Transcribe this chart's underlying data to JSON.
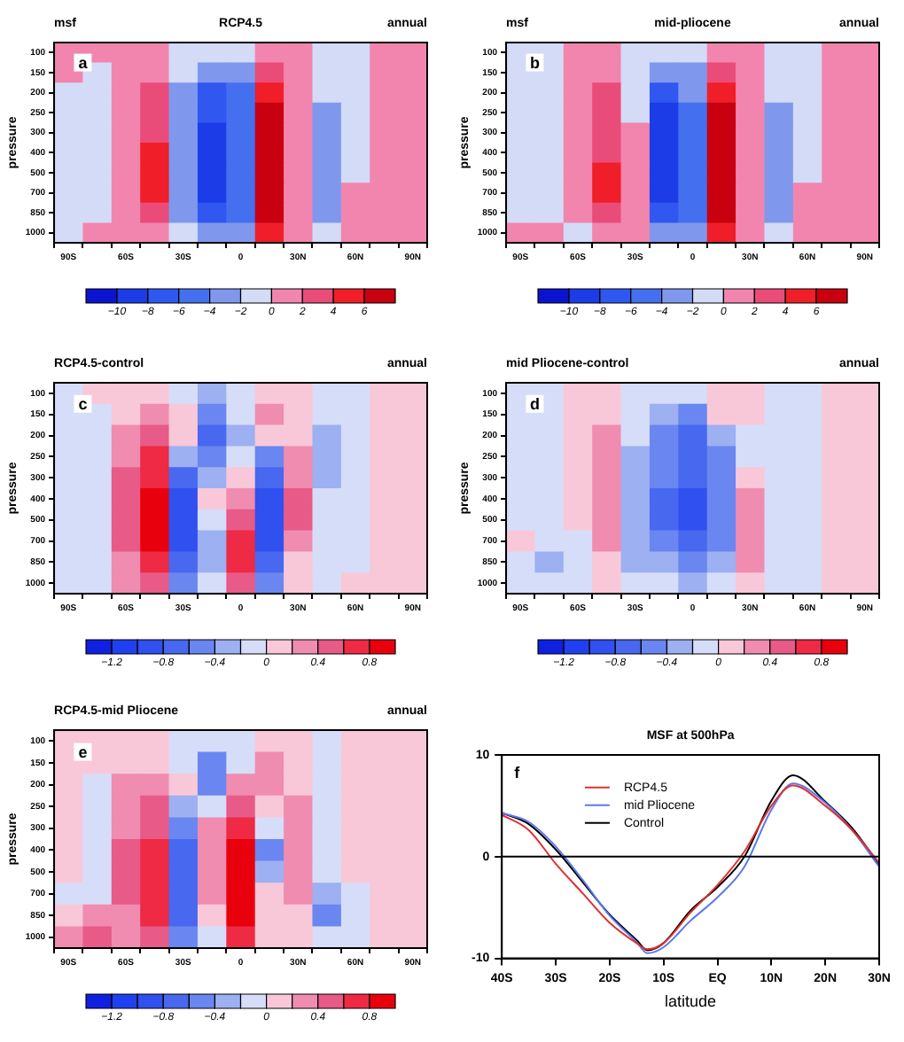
{
  "chart_data": [
    {
      "type": "heatmap",
      "title": "RCP4.5",
      "ylabel": "pressure",
      "annotations": [
        "msf",
        "annual",
        "a"
      ],
      "categories": [
        "90S",
        null,
        "60S",
        null,
        "30S",
        null,
        "0",
        null,
        "30N",
        null,
        "60N",
        null,
        "90N"
      ],
      "y_categories": [
        "100",
        "150",
        "200",
        "250",
        "300",
        "400",
        "500",
        "700",
        "850",
        "1000"
      ],
      "cells": [
        [
          1,
          1,
          1,
          1,
          -1,
          -1,
          -1,
          1,
          1,
          -1,
          -1,
          1,
          1
        ],
        [
          1,
          -1,
          1,
          1,
          -1,
          -3,
          -3,
          3,
          1,
          -1,
          -1,
          1,
          1
        ],
        [
          -1,
          -1,
          1,
          3,
          -3,
          -7,
          -5,
          5,
          1,
          -1,
          -1,
          1,
          1
        ],
        [
          -1,
          -1,
          1,
          3,
          -3,
          -7,
          -5,
          7,
          1,
          -3,
          -1,
          1,
          1
        ],
        [
          -1,
          -1,
          1,
          3,
          -3,
          -9,
          -5,
          7,
          1,
          -3,
          -1,
          1,
          1
        ],
        [
          -1,
          -1,
          1,
          5,
          -3,
          -9,
          -5,
          7,
          1,
          -3,
          -1,
          1,
          1
        ],
        [
          -1,
          -1,
          1,
          5,
          -3,
          -9,
          -5,
          7,
          1,
          -3,
          -1,
          1,
          1
        ],
        [
          -1,
          -1,
          1,
          5,
          -3,
          -9,
          -5,
          7,
          1,
          -3,
          1,
          1,
          1
        ],
        [
          -1,
          -1,
          1,
          3,
          -3,
          -7,
          -5,
          7,
          1,
          -3,
          1,
          1,
          1
        ],
        [
          -1,
          1,
          1,
          1,
          -1,
          -3,
          -3,
          5,
          1,
          -1,
          1,
          1,
          1
        ]
      ],
      "clim": [
        -12,
        8
      ],
      "cticks": [
        {
          "value": -10,
          "label": "−10"
        },
        {
          "value": -8,
          "label": "−8"
        },
        {
          "value": -6,
          "label": "−6"
        },
        {
          "value": -4,
          "label": "−4"
        },
        {
          "value": -2,
          "label": "−2"
        },
        0,
        2,
        4,
        6
      ],
      "colors": [
        "#0a14d0",
        "#1c3ce8",
        "#3058f0",
        "#4470f0",
        "#7f98ee",
        "#d3dbf6",
        "#f285ae",
        "#ea4c7a",
        "#f01e28",
        "#c8000f"
      ]
    },
    {
      "type": "heatmap",
      "title": "mid-pliocene",
      "ylabel": "pressure",
      "annotations": [
        "msf",
        "annual",
        "b"
      ],
      "categories": [
        "90S",
        null,
        "60S",
        null,
        "30S",
        null,
        "0",
        null,
        "30N",
        null,
        "60N",
        null,
        "90N"
      ],
      "y_categories": [
        "100",
        "150",
        "200",
        "250",
        "300",
        "400",
        "500",
        "700",
        "850",
        "1000"
      ],
      "cells": [
        [
          -1,
          -1,
          1,
          1,
          -1,
          -1,
          -1,
          1,
          1,
          -1,
          -1,
          1,
          1
        ],
        [
          -1,
          -1,
          1,
          1,
          -1,
          -3,
          -3,
          3,
          1,
          -1,
          -1,
          1,
          1
        ],
        [
          -1,
          -1,
          1,
          3,
          -1,
          -7,
          -3,
          5,
          1,
          -1,
          -1,
          1,
          1
        ],
        [
          -1,
          -1,
          1,
          3,
          -1,
          -9,
          -5,
          7,
          1,
          -3,
          -1,
          1,
          1
        ],
        [
          -1,
          -1,
          1,
          3,
          1,
          -9,
          -5,
          7,
          1,
          -3,
          -1,
          1,
          1
        ],
        [
          -1,
          -1,
          1,
          3,
          1,
          -9,
          -5,
          7,
          1,
          -3,
          -1,
          1,
          1
        ],
        [
          -1,
          -1,
          1,
          5,
          1,
          -9,
          -5,
          7,
          1,
          -3,
          -1,
          1,
          1
        ],
        [
          -1,
          -1,
          1,
          5,
          1,
          -9,
          -5,
          7,
          1,
          -3,
          1,
          1,
          1
        ],
        [
          -1,
          -1,
          1,
          3,
          1,
          -7,
          -5,
          7,
          1,
          -3,
          1,
          1,
          1
        ],
        [
          1,
          1,
          -1,
          1,
          1,
          -3,
          -3,
          5,
          1,
          -1,
          1,
          1,
          1
        ]
      ],
      "clim": [
        -12,
        8
      ],
      "cticks": [
        {
          "value": -10,
          "label": "−10"
        },
        {
          "value": -8,
          "label": "−8"
        },
        {
          "value": -6,
          "label": "−6"
        },
        {
          "value": -4,
          "label": "−4"
        },
        {
          "value": -2,
          "label": "−2"
        },
        0,
        2,
        4,
        6
      ],
      "colors": [
        "#0a14d0",
        "#1c3ce8",
        "#3058f0",
        "#4470f0",
        "#7f98ee",
        "#d3dbf6",
        "#f285ae",
        "#ea4c7a",
        "#f01e28",
        "#c8000f"
      ]
    },
    {
      "type": "heatmap",
      "title": "RCP4.5-control",
      "ylabel": "pressure",
      "annotations": [
        "annual",
        "c"
      ],
      "categories": [
        "90S",
        null,
        "60S",
        null,
        "30S",
        null,
        "0",
        null,
        "30N",
        null,
        "60N",
        null,
        "90N"
      ],
      "y_categories": [
        "100",
        "150",
        "200",
        "250",
        "300",
        "400",
        "500",
        "700",
        "850",
        "1000"
      ],
      "cells": [
        [
          -0.1,
          0.1,
          0.1,
          0.1,
          -0.1,
          -0.3,
          -0.1,
          0.1,
          0.1,
          -0.1,
          -0.1,
          0.1,
          0.1
        ],
        [
          -0.1,
          -0.1,
          0.1,
          0.3,
          0.1,
          -0.5,
          -0.1,
          0.3,
          0.1,
          -0.1,
          -0.1,
          0.1,
          0.1
        ],
        [
          -0.1,
          -0.1,
          0.3,
          0.5,
          0.1,
          -0.7,
          -0.3,
          0.1,
          0.1,
          -0.3,
          -0.1,
          0.1,
          0.1
        ],
        [
          -0.1,
          -0.1,
          0.3,
          0.7,
          -0.3,
          -0.5,
          -0.1,
          -0.5,
          0.3,
          -0.3,
          -0.1,
          0.1,
          0.1
        ],
        [
          -0.1,
          -0.1,
          0.5,
          0.7,
          -0.7,
          -0.3,
          0.1,
          -0.7,
          0.3,
          -0.3,
          -0.1,
          0.1,
          0.1
        ],
        [
          -0.1,
          -0.1,
          0.5,
          0.9,
          -0.9,
          0.1,
          0.3,
          -0.9,
          0.5,
          -0.1,
          -0.1,
          0.1,
          0.1
        ],
        [
          -0.1,
          -0.1,
          0.5,
          0.9,
          -0.9,
          -0.1,
          0.5,
          -0.9,
          0.5,
          -0.1,
          -0.1,
          0.1,
          0.1
        ],
        [
          -0.1,
          -0.1,
          0.5,
          0.9,
          -0.9,
          -0.3,
          0.7,
          -0.9,
          0.3,
          -0.1,
          -0.1,
          0.1,
          0.1
        ],
        [
          -0.1,
          -0.1,
          0.3,
          0.7,
          -0.7,
          -0.3,
          0.7,
          -0.7,
          0.1,
          -0.1,
          -0.1,
          0.1,
          0.1
        ],
        [
          -0.1,
          -0.1,
          0.3,
          0.5,
          -0.5,
          -0.1,
          0.5,
          -0.5,
          0.1,
          -0.1,
          0.1,
          0.1,
          0.1
        ]
      ],
      "clim": [
        -1.4,
        1.0
      ],
      "cticks": [
        {
          "value": -1.2,
          "label": "−1.2"
        },
        {
          "value": -0.8,
          "label": "−0.8"
        },
        {
          "value": -0.4,
          "label": "−0.4"
        },
        0,
        0.4,
        0.8
      ],
      "colors": [
        "#1020e0",
        "#2040f0",
        "#3050f0",
        "#4868f0",
        "#6a86f0",
        "#9cb0f2",
        "#d6ddf8",
        "#f8c8d8",
        "#f08cb0",
        "#e85a88",
        "#ee2a44",
        "#e8000c"
      ]
    },
    {
      "type": "heatmap",
      "title": "mid Pliocene-control",
      "ylabel": "pressure",
      "annotations": [
        "annual",
        "d"
      ],
      "categories": [
        "90S",
        null,
        "60S",
        null,
        "30S",
        null,
        "0",
        null,
        "30N",
        null,
        "60N",
        null,
        "90N"
      ],
      "y_categories": [
        "100",
        "150",
        "200",
        "250",
        "300",
        "400",
        "500",
        "700",
        "850",
        "1000"
      ],
      "cells": [
        [
          -0.1,
          -0.1,
          0.1,
          0.1,
          -0.1,
          -0.1,
          -0.1,
          0.1,
          0.1,
          -0.1,
          -0.1,
          0.1,
          0.1
        ],
        [
          -0.1,
          -0.1,
          0.1,
          0.1,
          -0.1,
          -0.3,
          -0.5,
          0.1,
          0.1,
          -0.1,
          -0.1,
          0.1,
          0.1
        ],
        [
          -0.1,
          -0.1,
          0.1,
          0.3,
          -0.1,
          -0.5,
          -0.7,
          -0.3,
          -0.1,
          -0.1,
          -0.1,
          0.1,
          0.1
        ],
        [
          -0.1,
          -0.1,
          0.1,
          0.3,
          -0.3,
          -0.5,
          -0.7,
          -0.5,
          -0.1,
          -0.1,
          -0.1,
          0.1,
          0.1
        ],
        [
          -0.1,
          -0.1,
          0.1,
          0.3,
          -0.3,
          -0.5,
          -0.7,
          -0.5,
          0.1,
          -0.1,
          -0.1,
          0.1,
          0.1
        ],
        [
          -0.1,
          -0.1,
          0.1,
          0.3,
          -0.3,
          -0.7,
          -0.9,
          -0.5,
          0.3,
          -0.1,
          -0.1,
          0.1,
          0.1
        ],
        [
          -0.1,
          -0.1,
          0.1,
          0.3,
          -0.3,
          -0.7,
          -0.9,
          -0.5,
          0.3,
          -0.1,
          -0.1,
          0.1,
          0.1
        ],
        [
          0.1,
          -0.1,
          -0.1,
          0.3,
          -0.3,
          -0.5,
          -0.7,
          -0.5,
          0.3,
          -0.1,
          -0.1,
          0.1,
          0.1
        ],
        [
          -0.1,
          -0.3,
          -0.1,
          0.1,
          -0.3,
          -0.3,
          -0.5,
          -0.3,
          0.3,
          -0.1,
          -0.1,
          0.1,
          0.1
        ],
        [
          -0.1,
          -0.1,
          -0.1,
          0.1,
          -0.1,
          -0.1,
          -0.3,
          -0.1,
          0.1,
          -0.1,
          -0.1,
          0.1,
          0.1
        ]
      ],
      "clim": [
        -1.4,
        1.0
      ],
      "cticks": [
        {
          "value": -1.2,
          "label": "−1.2"
        },
        {
          "value": -0.8,
          "label": "−0.8"
        },
        {
          "value": -0.4,
          "label": "−0.4"
        },
        0,
        0.4,
        0.8
      ],
      "colors": [
        "#1020e0",
        "#2040f0",
        "#3050f0",
        "#4868f0",
        "#6a86f0",
        "#9cb0f2",
        "#d6ddf8",
        "#f8c8d8",
        "#f08cb0",
        "#e85a88",
        "#ee2a44",
        "#e8000c"
      ]
    },
    {
      "type": "heatmap",
      "title": "RCP4.5-mid Pliocene",
      "ylabel": "pressure",
      "annotations": [
        "annual",
        "e"
      ],
      "categories": [
        "90S",
        null,
        "60S",
        null,
        "30S",
        null,
        "0",
        null,
        "30N",
        null,
        "60N",
        null,
        "90N"
      ],
      "y_categories": [
        "100",
        "150",
        "200",
        "250",
        "300",
        "400",
        "500",
        "700",
        "850",
        "1000"
      ],
      "cells": [
        [
          0.1,
          0.1,
          0.1,
          0.1,
          -0.1,
          -0.1,
          -0.1,
          0.1,
          0.1,
          -0.1,
          0.1,
          0.1,
          0.1
        ],
        [
          0.1,
          0.1,
          0.1,
          0.1,
          -0.1,
          -0.5,
          -0.1,
          0.3,
          0.1,
          -0.1,
          0.1,
          0.1,
          0.1
        ],
        [
          0.1,
          -0.1,
          0.3,
          0.3,
          0.1,
          -0.5,
          0.3,
          0.3,
          0.1,
          -0.1,
          0.1,
          0.1,
          0.1
        ],
        [
          0.1,
          -0.1,
          0.3,
          0.5,
          -0.3,
          -0.1,
          0.5,
          0.1,
          0.3,
          -0.1,
          0.1,
          0.1,
          0.1
        ],
        [
          0.1,
          -0.1,
          0.3,
          0.5,
          -0.5,
          0.3,
          0.7,
          -0.1,
          0.3,
          -0.1,
          0.1,
          0.1,
          0.1
        ],
        [
          0.1,
          -0.1,
          0.5,
          0.7,
          -0.7,
          0.3,
          0.9,
          -0.5,
          0.3,
          -0.1,
          0.1,
          0.1,
          0.1
        ],
        [
          0.1,
          -0.1,
          0.5,
          0.7,
          -0.7,
          0.3,
          0.9,
          -0.3,
          0.3,
          -0.1,
          0.1,
          0.1,
          0.1
        ],
        [
          -0.1,
          -0.1,
          0.5,
          0.7,
          -0.7,
          0.3,
          0.9,
          0.1,
          0.3,
          -0.3,
          -0.1,
          0.1,
          0.1
        ],
        [
          0.1,
          0.3,
          0.3,
          0.7,
          -0.7,
          0.1,
          0.9,
          0.1,
          0.1,
          -0.5,
          -0.1,
          0.1,
          0.1
        ],
        [
          0.3,
          0.5,
          0.3,
          0.5,
          -0.5,
          -0.1,
          0.7,
          0.1,
          0.1,
          -0.1,
          -0.1,
          0.1,
          0.1
        ]
      ],
      "clim": [
        -1.4,
        1.0
      ],
      "cticks": [
        {
          "value": -1.2,
          "label": "−1.2"
        },
        {
          "value": -0.8,
          "label": "−0.8"
        },
        {
          "value": -0.4,
          "label": "−0.4"
        },
        0,
        0.4,
        0.8
      ],
      "colors": [
        "#1020e0",
        "#2040f0",
        "#3050f0",
        "#4868f0",
        "#6a86f0",
        "#9cb0f2",
        "#d6ddf8",
        "#f8c8d8",
        "#f08cb0",
        "#e85a88",
        "#ee2a44",
        "#e8000c"
      ]
    },
    {
      "type": "line",
      "title": "MSF at 500hPa",
      "xlabel": "latitude",
      "annotations": [
        "f"
      ],
      "legend": "top left",
      "x": [
        -40,
        -35,
        -30,
        -25,
        -20,
        -15,
        -13,
        -10,
        -5,
        0,
        5,
        10,
        14,
        20,
        25,
        30
      ],
      "series": [
        {
          "name": "RCP4.5",
          "color": "#e03030",
          "values": [
            4.1,
            2.6,
            -0.7,
            -3.6,
            -6.5,
            -8.5,
            -9.1,
            -8.5,
            -5.5,
            -2.8,
            0.5,
            5.0,
            7.0,
            5.0,
            2.6,
            -0.6
          ]
        },
        {
          "name": "mid Pliocene",
          "color": "#5a78f0",
          "values": [
            4.3,
            3.4,
            1.0,
            -2.3,
            -5.8,
            -8.4,
            -9.5,
            -8.9,
            -6.3,
            -4.0,
            -1.0,
            4.6,
            7.2,
            5.3,
            2.6,
            -1.0
          ]
        },
        {
          "name": "Control",
          "color": "#000000",
          "values": [
            4.3,
            3.2,
            0.7,
            -2.5,
            -5.7,
            -8.2,
            -9.2,
            -8.5,
            -5.3,
            -3.0,
            0.0,
            5.5,
            8.0,
            5.4,
            2.8,
            -0.8
          ]
        }
      ],
      "xlim": [
        -40,
        30
      ],
      "xticks": [
        {
          "value": -40,
          "label": "40S"
        },
        {
          "value": -30,
          "label": "30S"
        },
        {
          "value": -20,
          "label": "20S"
        },
        {
          "value": -10,
          "label": "10S"
        },
        {
          "value": 0,
          "label": "EQ"
        },
        {
          "value": 10,
          "label": "10N"
        },
        {
          "value": 20,
          "label": "20N"
        },
        {
          "value": 30,
          "label": "30N"
        }
      ],
      "ylim": [
        -10,
        10
      ],
      "yticks": [
        -10,
        0,
        10
      ],
      "ref_lines": [
        {
          "axis": "y",
          "value": 0,
          "color": "#000000"
        }
      ]
    }
  ]
}
